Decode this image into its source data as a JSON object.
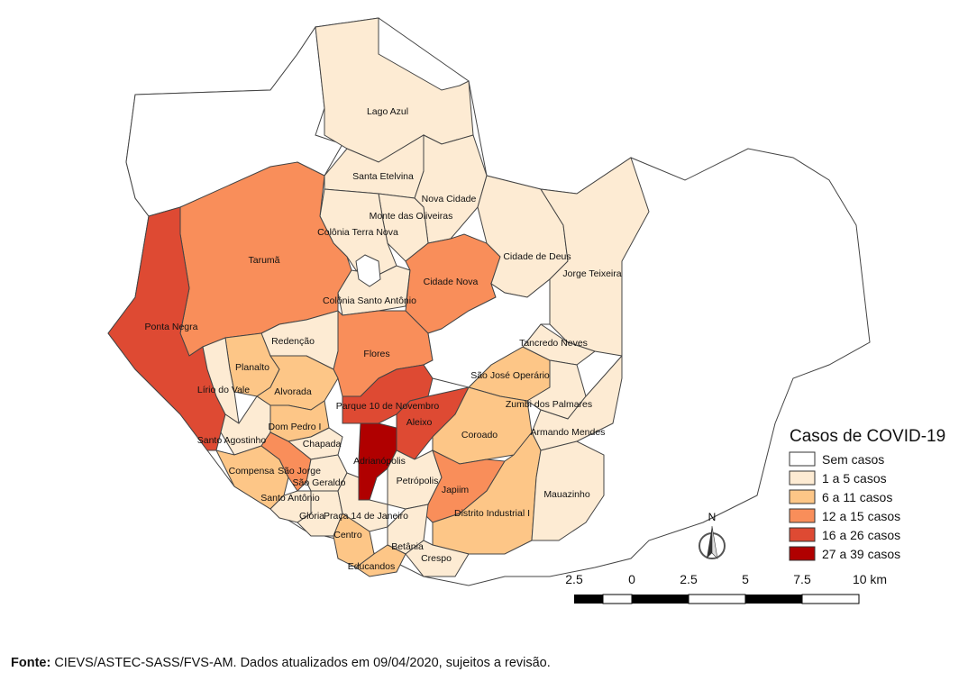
{
  "colors": {
    "sem": "#ffffff",
    "c1_5": "#fdebd3",
    "c6_11": "#fdc687",
    "c12_15": "#f98e5a",
    "c16_26": "#de4a33",
    "c27_39": "#b00000",
    "stroke": "#444444"
  },
  "legend": {
    "title": "Casos de COVID-19",
    "items": [
      {
        "label": "Sem casos",
        "color": "#ffffff"
      },
      {
        "label": "1 a 5 casos",
        "color": "#fdebd3"
      },
      {
        "label": "6 a 11 casos",
        "color": "#fdc687"
      },
      {
        "label": "12 a 15 casos",
        "color": "#f98e5a"
      },
      {
        "label": "16 a 26 casos",
        "color": "#de4a33"
      },
      {
        "label": "27 a 39 casos",
        "color": "#b00000"
      }
    ]
  },
  "north_arrow": {
    "label": "N"
  },
  "scale_bar": {
    "ticks": [
      "2.5",
      "0",
      "2.5",
      "5",
      "7.5",
      "10 km"
    ]
  },
  "neighborhoods": [
    "Lago Azul",
    "Santa Etelvina",
    "Nova Cidade",
    "Monte das Oliveiras",
    "Colônia Terra Nova",
    "Tarumã",
    "Ponta Negra",
    "Cidade de Deus",
    "Jorge Teixeira",
    "Cidade Nova",
    "Colônia Santo Antônio",
    "Redenção",
    "Flores",
    "Planalto",
    "Lírio do Vale",
    "Alvorada",
    "Tancredo Neves",
    "São José Operário",
    "Parque 10 de Novembro",
    "Zumbi dos Palmares",
    "Dom Pedro I",
    "Aleixo",
    "Coroado",
    "Armando Mendes",
    "Santo Agostinho",
    "Chapada",
    "Compensa",
    "São Jorge",
    "Adrianópolis",
    "Petrópolis",
    "Japiim",
    "Mauazinho",
    "Santo Antônio",
    "São Geraldo",
    "Distrito Industrial I",
    "Glória",
    "Praça 14 de Janeiro",
    "Centro",
    "Betânia",
    "Educandos",
    "Crespo"
  ],
  "source": {
    "bold": "Fonte:",
    "text": " CIEVS/ASTEC-SASS/FVS-AM. Dados atualizados em 09/04/2020, sujeitos a revisão."
  }
}
